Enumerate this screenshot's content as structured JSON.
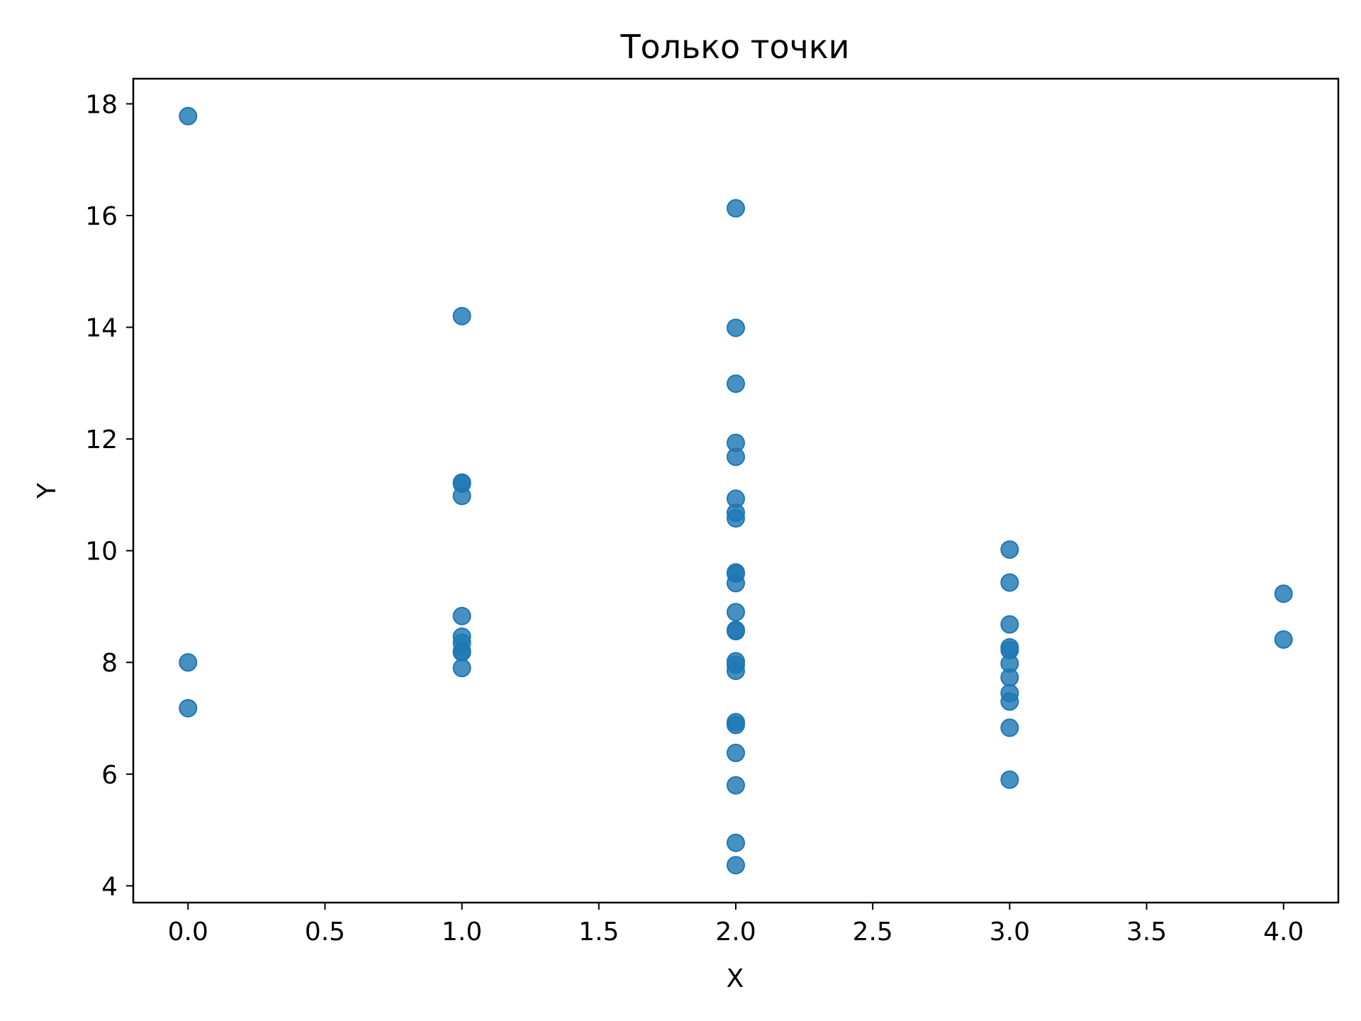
{
  "chart_data": {
    "type": "scatter",
    "title": "Только точки",
    "xlabel": "X",
    "ylabel": "Y",
    "xlim": [
      -0.2,
      4.2
    ],
    "ylim": [
      3.7,
      18.45
    ],
    "xticks": [
      0.0,
      0.5,
      1.0,
      1.5,
      2.0,
      2.5,
      3.0,
      3.5,
      4.0
    ],
    "xtick_labels": [
      "0.0",
      "0.5",
      "1.0",
      "1.5",
      "2.0",
      "2.5",
      "3.0",
      "3.5",
      "4.0"
    ],
    "yticks": [
      4,
      6,
      8,
      10,
      12,
      14,
      16,
      18
    ],
    "ytick_labels": [
      "4",
      "6",
      "8",
      "10",
      "12",
      "14",
      "16",
      "18"
    ],
    "grid": false,
    "colors": {
      "points": "#1f77b4",
      "frame": "#000000",
      "background": "#ffffff"
    },
    "points": [
      {
        "x": 0,
        "y": 17.78
      },
      {
        "x": 0,
        "y": 8.0
      },
      {
        "x": 0,
        "y": 7.18
      },
      {
        "x": 1,
        "y": 14.2
      },
      {
        "x": 1,
        "y": 11.22
      },
      {
        "x": 1,
        "y": 11.2
      },
      {
        "x": 1,
        "y": 10.98
      },
      {
        "x": 1,
        "y": 8.83
      },
      {
        "x": 1,
        "y": 8.46
      },
      {
        "x": 1,
        "y": 8.35
      },
      {
        "x": 1,
        "y": 8.2
      },
      {
        "x": 1,
        "y": 8.18
      },
      {
        "x": 1,
        "y": 7.9
      },
      {
        "x": 2,
        "y": 16.13
      },
      {
        "x": 2,
        "y": 13.99
      },
      {
        "x": 2,
        "y": 12.99
      },
      {
        "x": 2,
        "y": 11.93
      },
      {
        "x": 2,
        "y": 11.68
      },
      {
        "x": 2,
        "y": 10.93
      },
      {
        "x": 2,
        "y": 10.68
      },
      {
        "x": 2,
        "y": 10.58
      },
      {
        "x": 2,
        "y": 9.61
      },
      {
        "x": 2,
        "y": 9.59
      },
      {
        "x": 2,
        "y": 9.42
      },
      {
        "x": 2,
        "y": 8.9
      },
      {
        "x": 2,
        "y": 8.58
      },
      {
        "x": 2,
        "y": 8.56
      },
      {
        "x": 2,
        "y": 8.02
      },
      {
        "x": 2,
        "y": 7.96
      },
      {
        "x": 2,
        "y": 7.85
      },
      {
        "x": 2,
        "y": 6.93
      },
      {
        "x": 2,
        "y": 6.88
      },
      {
        "x": 2,
        "y": 6.38
      },
      {
        "x": 2,
        "y": 5.8
      },
      {
        "x": 2,
        "y": 4.77
      },
      {
        "x": 2,
        "y": 4.37
      },
      {
        "x": 3,
        "y": 10.02
      },
      {
        "x": 3,
        "y": 9.43
      },
      {
        "x": 3,
        "y": 8.68
      },
      {
        "x": 3,
        "y": 8.27
      },
      {
        "x": 3,
        "y": 8.22
      },
      {
        "x": 3,
        "y": 7.98
      },
      {
        "x": 3,
        "y": 7.73
      },
      {
        "x": 3,
        "y": 7.45
      },
      {
        "x": 3,
        "y": 7.3
      },
      {
        "x": 3,
        "y": 6.83
      },
      {
        "x": 3,
        "y": 5.9
      },
      {
        "x": 4,
        "y": 9.23
      },
      {
        "x": 4,
        "y": 8.41
      }
    ]
  }
}
